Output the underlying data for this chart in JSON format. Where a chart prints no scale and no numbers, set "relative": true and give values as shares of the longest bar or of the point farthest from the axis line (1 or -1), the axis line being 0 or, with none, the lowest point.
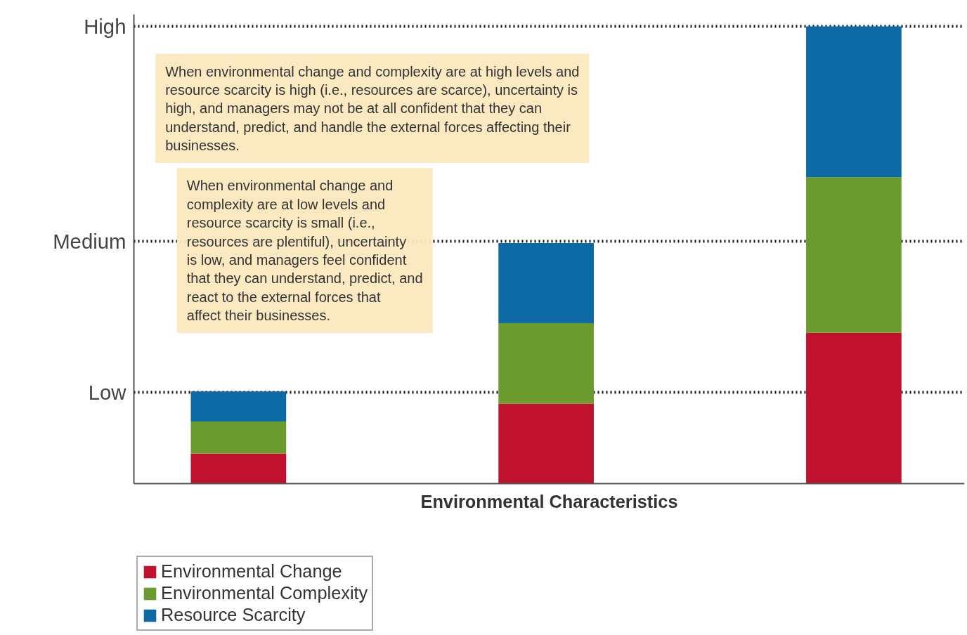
{
  "chart_data": {
    "type": "bar",
    "stacked": true,
    "relative": true,
    "xlabel": "Environmental Characteristics",
    "categories": [
      null,
      null,
      null
    ],
    "series": [
      {
        "name": "Environmental Change",
        "color": "#c0122f",
        "values": [
          0.066,
          0.175,
          0.33
        ]
      },
      {
        "name": "Environmental Complexity",
        "color": "#6b9a2e",
        "values": [
          0.07,
          0.176,
          0.34
        ]
      },
      {
        "name": "Resource Scarcity",
        "color": "#0e6aa5",
        "values": [
          0.066,
          0.175,
          0.33
        ]
      }
    ],
    "ref_lines": [
      {
        "axis": "y",
        "value": 0.2,
        "label": "Low",
        "line_style": "dotted"
      },
      {
        "axis": "y",
        "value": 0.53,
        "label": "Medium",
        "line_style": "dotted"
      },
      {
        "axis": "y",
        "value": 1.0,
        "label": "High",
        "line_style": "dotted"
      }
    ],
    "annotations": [
      "When environmental change and complexity are at high levels and resource scarcity is high (i.e., resources are scarce), uncertainty is high, and managers may not be at all confident that they can understand, predict, and handle the external forces affecting their businesses.",
      "When environmental change and complexity are at low levels and resource scarcity is small (i.e., resources are plentiful), uncertainty is low, and managers feel confident that they can understand, predict, and react to the external forces that affect their businesses."
    ],
    "legend": "bottom left",
    "grid": false
  }
}
